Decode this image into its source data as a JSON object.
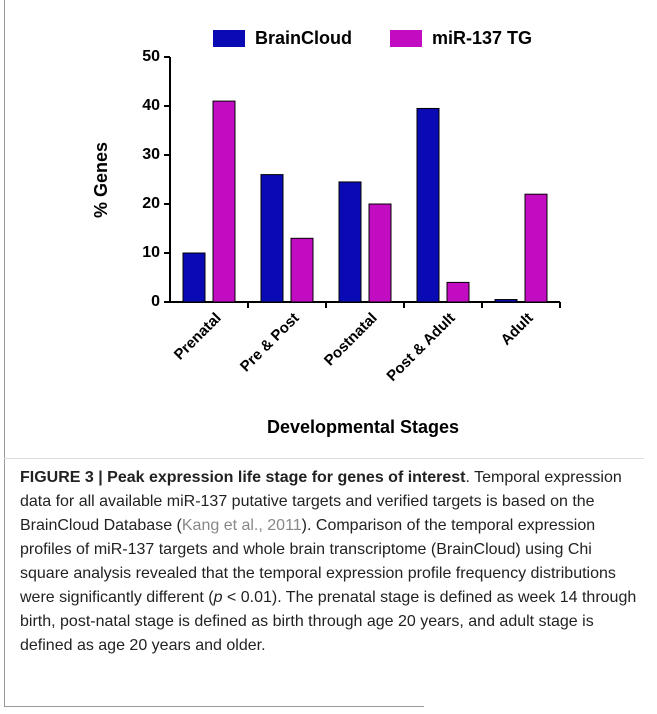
{
  "chart_data": {
    "type": "bar",
    "x_label": "Developmental Stages",
    "y_label": "% Genes",
    "categories": [
      "Prenatal",
      "Pre & Post",
      "Postnatal",
      "Post & Adult",
      "Adult"
    ],
    "series": [
      {
        "name": "BrainCloud",
        "color": "#0a0ab4",
        "values": [
          10,
          26,
          24.5,
          39.5,
          0.5
        ]
      },
      {
        "name": "miR-137 TG",
        "color": "#c20cc2",
        "values": [
          41,
          13,
          20,
          4,
          22
        ]
      }
    ],
    "ylim": [
      0,
      50
    ],
    "yticks": [
      0,
      10,
      20,
      30,
      40,
      50
    ],
    "grid": false,
    "legend": "top"
  },
  "caption": {
    "label": "FIGURE 3 | Peak expression life stage for genes of interest",
    "text_1": ". Temporal expression data for all available miR-137 putative targets and verified targets is based on the BrainCloud Database (",
    "citation": "Kang et al., 2011",
    "text_2": "). Comparison of the temporal expression profiles of miR-137 targets and whole brain transcriptome (BrainCloud) using Chi square analysis revealed that the temporal expression profile frequency distributions were significantly different (",
    "p": "p",
    "text_3": " < 0.01). The prenatal stage is defined as week 14 through birth, post-natal stage is defined as birth through age 20 years, and adult stage is defined as age 20 years and older."
  }
}
